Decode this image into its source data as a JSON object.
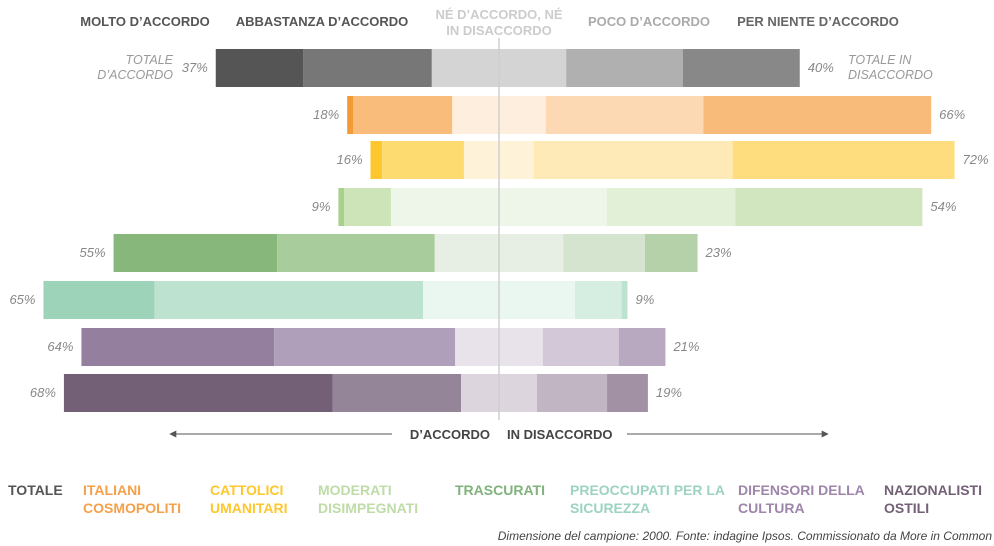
{
  "chart_data": {
    "type": "diverging-bar",
    "series": [
      {
        "name": "MOLTO D’ACCORDO",
        "color": "#555555",
        "values": [
          15,
          1,
          2,
          1,
          28,
          19,
          33,
          46
        ],
        "colors": [
          "#555555",
          "#f39c36",
          "#fdc72d",
          "#a9d18e",
          "#88b77b",
          "#9dd3b9",
          "#957f9f",
          "#735f76"
        ]
      },
      {
        "name": "ABBASTANZA D’ACCORDO",
        "color": "#555555",
        "values": [
          22,
          17,
          14,
          8,
          27,
          46,
          31,
          22
        ],
        "colors": [
          "#777777",
          "#f9bc7b",
          "#fedb70",
          "#cce4b8",
          "#a8cc9c",
          "#bde3d0",
          "#b09fba",
          "#958599"
        ]
      },
      {
        "name": "NÉ D’ACCORDO, NÉ IN DISACCORDO",
        "color": "#cccccc",
        "values": [
          23,
          16,
          12,
          37,
          22,
          26,
          15,
          13
        ],
        "colors": [
          "#d4d4d4",
          "#feeedd",
          "#fef2d8",
          "#eef6e9",
          "#e7efe5",
          "#eaf6f0",
          "#e8e3ea",
          "#dcd5dd"
        ]
      },
      {
        "name": "POCO D’ACCORDO",
        "color": "#aaaaaa",
        "values": [
          20,
          27,
          34,
          22,
          14,
          8,
          13,
          12
        ],
        "colors": [
          "#b0b0b0",
          "#fcd9b3",
          "#feeab6",
          "#e2f0d7",
          "#d4e4cf",
          "#d6ede2",
          "#d3c8d8",
          "#c1b4c3"
        ]
      },
      {
        "name": "PER NIENTE D’ACCORDO",
        "color": "#666666",
        "values": [
          20,
          39,
          38,
          32,
          9,
          1,
          8,
          7
        ],
        "colors": [
          "#888888",
          "#f9bb7a",
          "#fedd7f",
          "#d1e6bf",
          "#b4d1aa",
          "#bde3d0",
          "#b8a8c0",
          "#a291a5"
        ]
      }
    ],
    "categories": [
      "TOTALE",
      "ITALIANI COSMOPOLITI",
      "CATTOLICI UMANITARI",
      "MODERATI DISIMPEGNATI",
      "TRASCURATI",
      "PREOCCUPATI PER LA SICUREZZA",
      "DIFENSORI DELLA CULTURA",
      "NAZIONALISTI OSTILI"
    ],
    "category_colors": [
      "#555555",
      "#f5a04a",
      "#fdc72d",
      "#bfdca8",
      "#7fb37a",
      "#9dd3c0",
      "#9e85aa",
      "#735f76"
    ],
    "totals_agree": {
      "label": "TOTALE D’ACCORDO",
      "values": [
        37,
        18,
        16,
        9,
        55,
        65,
        64,
        68
      ],
      "value_labels": [
        "37%",
        "18%",
        "16%",
        "9%",
        "55%",
        "65%",
        "64%",
        "68%"
      ]
    },
    "totals_disagree": {
      "label": "TOTALE IN DISACCORDO",
      "values": [
        40,
        66,
        72,
        54,
        23,
        9,
        21,
        19
      ],
      "value_labels": [
        "40%",
        "66%",
        "72%",
        "54%",
        "23%",
        "9%",
        "21%",
        "19%"
      ]
    },
    "axis_left": "D’ACCORDO",
    "axis_right": "IN DISACCORDO",
    "source": "Dimensione del campione: 2000. Fonte: indagine Ipsos. Commissionato da More in Common"
  }
}
